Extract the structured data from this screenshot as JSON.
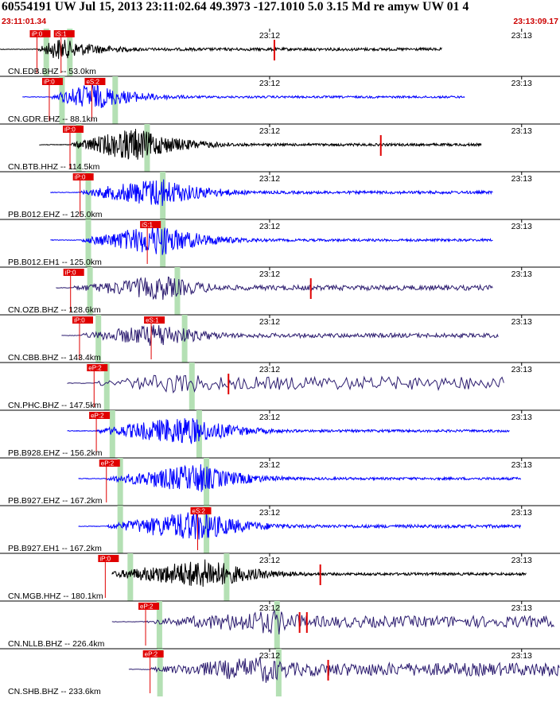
{
  "header": {
    "title": "60554191 UW Jul 15, 2013 23:11:02.64    49.3973 -127.1010  5.0 3.15 Md re amyw UW 01    4",
    "start_time": "23:11:01.34",
    "end_time": "23:13:09.17"
  },
  "colors": {
    "background": "#ffffff",
    "divider": "#000000",
    "pick_box": "#e00000",
    "pick_line": "#e00000",
    "window": "#b4e0b4",
    "blue": "#0000ff",
    "black": "#000000",
    "navy": "#2a1a6e"
  },
  "chart_data": {
    "type": "line",
    "x_unit": "time",
    "time_labels": [
      "23:12",
      "23:13"
    ],
    "traces": [
      {
        "label": "CN.EDB.BHZ -- 53.0km",
        "color": "black",
        "picks": [
          {
            "label": "iP:0",
            "t": 0.066
          },
          {
            "label": "iS:1",
            "t": 0.109
          }
        ],
        "windows": [
          0.082,
          0.124
        ],
        "start": 0.0,
        "end": 0.79,
        "onset": 0.068,
        "peak": 0.108,
        "amp": 0.55,
        "tail": 0.06,
        "freq": 1.4,
        "marks": [
          0.49
        ]
      },
      {
        "label": "CN.GDR.EHZ -- 88.1km",
        "color": "blue",
        "picks": [
          {
            "label": "iP:0",
            "t": 0.088
          },
          {
            "label": "eS:2",
            "t": 0.164
          }
        ],
        "windows": [
          0.11,
          0.205
        ],
        "start": 0.04,
        "end": 0.83,
        "onset": 0.092,
        "peak": 0.166,
        "amp": 0.7,
        "tail": 0.04,
        "freq": 1.2,
        "marks": []
      },
      {
        "label": "CN.BTB.HHZ -- 114.5km",
        "color": "black",
        "picks": [
          {
            "label": "iP:0",
            "t": 0.125
          }
        ],
        "windows": [
          0.14,
          0.262
        ],
        "start": 0.07,
        "end": 0.86,
        "onset": 0.127,
        "peak": 0.245,
        "amp": 0.85,
        "tail": 0.05,
        "freq": 1.6,
        "marks": [
          0.68
        ]
      },
      {
        "label": "PB.B012.EHZ -- 125.0km",
        "color": "blue",
        "picks": [
          {
            "label": "iP:0",
            "t": 0.143
          }
        ],
        "windows": [
          0.157,
          0.29
        ],
        "start": 0.09,
        "end": 0.88,
        "onset": 0.145,
        "peak": 0.29,
        "amp": 0.75,
        "tail": 0.06,
        "freq": 1.3,
        "marks": []
      },
      {
        "label": "PB.B012.EH1 -- 125.0km",
        "color": "blue",
        "picks": [
          {
            "label": "iS:1",
            "t": 0.263
          }
        ],
        "windows": [
          0.157,
          0.29
        ],
        "start": 0.09,
        "end": 0.88,
        "onset": 0.145,
        "peak": 0.29,
        "amp": 0.8,
        "tail": 0.05,
        "freq": 1.3,
        "marks": []
      },
      {
        "label": "CN.OZB.BHZ -- 128.6km",
        "color": "navy",
        "picks": [
          {
            "label": "iP:0",
            "t": 0.126
          }
        ],
        "windows": [
          0.16,
          0.316
        ],
        "start": 0.1,
        "end": 0.88,
        "onset": 0.13,
        "peak": 0.3,
        "amp": 0.6,
        "tail": 0.12,
        "freq": 0.9,
        "marks": [
          0.555
        ]
      },
      {
        "label": "CN.CBB.BHZ -- 143.4km",
        "color": "navy",
        "picks": [
          {
            "label": "iP:0",
            "t": 0.142
          },
          {
            "label": "eS:1",
            "t": 0.27
          }
        ],
        "windows": [
          0.175,
          0.329
        ],
        "start": 0.11,
        "end": 0.89,
        "onset": 0.145,
        "peak": 0.295,
        "amp": 0.6,
        "tail": 0.1,
        "freq": 0.9,
        "marks": []
      },
      {
        "label": "CN.PHC.BHZ -- 147.5km",
        "color": "navy",
        "picks": [
          {
            "label": "eP:2",
            "t": 0.168
          }
        ],
        "windows": [
          0.19,
          0.342
        ],
        "start": 0.12,
        "end": 0.9,
        "onset": 0.17,
        "peak": 0.34,
        "amp": 0.55,
        "tail": 0.35,
        "freq": 0.45,
        "marks": [
          0.408
        ]
      },
      {
        "label": "PB.B928.EHZ -- 156.2km",
        "color": "blue",
        "picks": [
          {
            "label": "eP:2",
            "t": 0.172
          }
        ],
        "windows": [
          0.2,
          0.355
        ],
        "start": 0.12,
        "end": 0.91,
        "onset": 0.172,
        "peak": 0.34,
        "amp": 0.75,
        "tail": 0.05,
        "freq": 1.3,
        "marks": []
      },
      {
        "label": "PB.B927.EHZ -- 167.2km",
        "color": "blue",
        "picks": [
          {
            "label": "eP:2",
            "t": 0.19
          }
        ],
        "windows": [
          0.214,
          0.368
        ],
        "start": 0.14,
        "end": 0.93,
        "onset": 0.19,
        "peak": 0.36,
        "amp": 0.72,
        "tail": 0.05,
        "freq": 1.3,
        "marks": []
      },
      {
        "label": "PB.B927.EH1 -- 167.2km",
        "color": "blue",
        "picks": [
          {
            "label": "eS:2",
            "t": 0.353
          }
        ],
        "windows": [
          0.214,
          0.368
        ],
        "start": 0.14,
        "end": 0.93,
        "onset": 0.19,
        "peak": 0.36,
        "amp": 0.8,
        "tail": 0.07,
        "freq": 1.3,
        "marks": []
      },
      {
        "label": "CN.MGB.HHZ -- 180.1km",
        "color": "black",
        "picks": [
          {
            "label": "iP:0",
            "t": 0.188
          }
        ],
        "windows": [
          0.232,
          0.404
        ],
        "start": 0.2,
        "end": 0.94,
        "onset": 0.19,
        "peak": 0.38,
        "amp": 0.75,
        "tail": 0.05,
        "freq": 1.6,
        "marks": [
          0.572
        ]
      },
      {
        "label": "CN.NLLB.BHZ -- 226.4km",
        "color": "navy",
        "picks": [
          {
            "label": "eP:2",
            "t": 0.26
          }
        ],
        "windows": [
          0.284,
          0.494
        ],
        "start": 0.2,
        "end": 0.99,
        "onset": 0.262,
        "peak": 0.5,
        "amp": 0.6,
        "tail": 0.3,
        "freq": 0.7,
        "marks": [
          0.535,
          0.548
        ]
      },
      {
        "label": "CN.SHB.BHZ -- 233.6km",
        "color": "navy",
        "picks": [
          {
            "label": "eP:2",
            "t": 0.268
          }
        ],
        "windows": [
          0.285,
          0.497
        ],
        "start": 0.23,
        "end": 1.0,
        "onset": 0.27,
        "peak": 0.48,
        "amp": 0.65,
        "tail": 0.35,
        "freq": 0.8,
        "marks": [
          0.586
        ]
      }
    ]
  }
}
